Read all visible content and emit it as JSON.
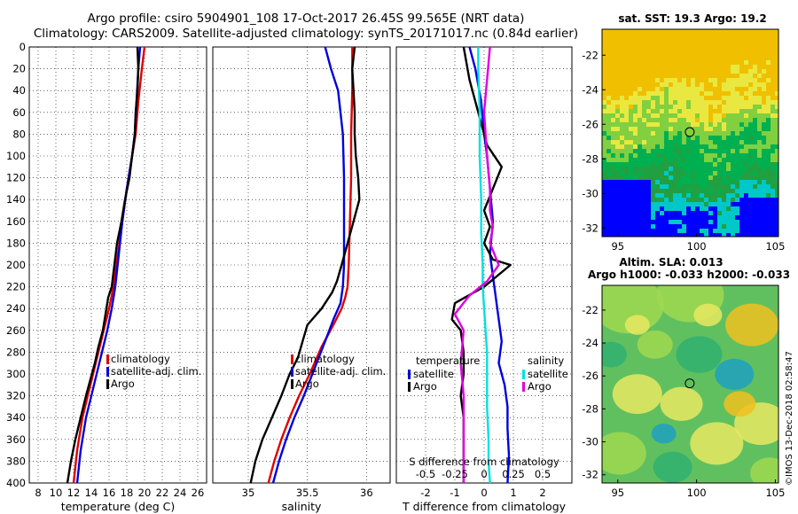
{
  "title": {
    "line1": "Argo profile: csiro 5904901_108 17-Oct-2017 26.45S 99.565E (NRT data)",
    "line2": "Climatology: CARS2009. Satellite-adjusted climatology: synTS_20171017.nc (0.84d earlier)"
  },
  "watermark": "©IMOS 13-Dec-2018 02:58:47",
  "colors": {
    "climatology": "#e00000",
    "satellite": "#0000dd",
    "argo": "#000000",
    "sat_salinity": "#00e0e0",
    "argo_salinity": "#e000e0"
  },
  "chart_data": [
    {
      "id": "temperature",
      "type": "line",
      "xlabel": "temperature (deg C)",
      "xlim": [
        7,
        27
      ],
      "ylim": [
        400,
        0
      ],
      "xticks": [
        8,
        10,
        12,
        14,
        16,
        18,
        20,
        22,
        24,
        26
      ],
      "yticks": [
        0,
        20,
        40,
        60,
        80,
        100,
        120,
        140,
        160,
        180,
        200,
        220,
        240,
        260,
        280,
        300,
        320,
        340,
        360,
        380,
        400
      ],
      "grid": true,
      "legend": {
        "position": "bottom-right",
        "labels": [
          "climatology",
          "satellite-adj. clim.",
          "Argo"
        ]
      },
      "series": [
        {
          "name": "climatology",
          "color": "#e00000",
          "x": [
            20.0,
            19.7,
            19.3,
            19.0,
            18.6,
            18.0,
            17.5,
            17.0,
            16.5,
            16.0,
            15.4,
            14.8,
            14.2,
            13.6,
            13.0,
            12.4,
            12.0
          ],
          "y": [
            0,
            20,
            50,
            80,
            100,
            130,
            160,
            190,
            220,
            240,
            260,
            280,
            300,
            320,
            340,
            370,
            400
          ]
        },
        {
          "name": "satellite-adj. clim.",
          "color": "#0000dd",
          "x": [
            19.5,
            19.3,
            19.1,
            18.9,
            18.6,
            18.0,
            17.5,
            17.1,
            16.7,
            16.3,
            15.8,
            15.2,
            14.6,
            14.0,
            13.4,
            12.8,
            12.4
          ],
          "y": [
            0,
            20,
            50,
            80,
            100,
            130,
            160,
            190,
            220,
            240,
            260,
            280,
            300,
            320,
            340,
            370,
            400
          ]
        },
        {
          "name": "Argo",
          "color": "#000000",
          "x": [
            19.2,
            19.3,
            19.2,
            19.0,
            18.9,
            18.6,
            18.3,
            17.8,
            17.4,
            16.9,
            16.6,
            16.3,
            15.9,
            15.6,
            15.3,
            14.8,
            14.4,
            13.9,
            13.4,
            12.8,
            12.2,
            11.7,
            11.3
          ],
          "y": [
            0,
            20,
            40,
            60,
            80,
            100,
            120,
            140,
            160,
            180,
            200,
            220,
            230,
            245,
            260,
            275,
            290,
            305,
            320,
            340,
            360,
            380,
            400
          ]
        }
      ]
    },
    {
      "id": "salinity",
      "type": "line",
      "xlabel": "salinity",
      "xlim": [
        34.7,
        36.2
      ],
      "ylim": [
        400,
        0
      ],
      "xticks": [
        35,
        35.5,
        36
      ],
      "xtick_labels": [
        "35",
        "35.5",
        "36"
      ],
      "grid": true,
      "legend": {
        "position": "bottom-right",
        "labels": [
          "climatology",
          "satellite-adj. clim.",
          "Argo"
        ]
      },
      "series": [
        {
          "name": "climatology",
          "color": "#e00000",
          "x": [
            35.88,
            35.88,
            35.87,
            35.87,
            35.86,
            35.85,
            35.84,
            35.82,
            35.79,
            35.72,
            35.62,
            35.52,
            35.43,
            35.35,
            35.28,
            35.22,
            35.17
          ],
          "y": [
            0,
            40,
            80,
            120,
            160,
            200,
            220,
            230,
            240,
            255,
            275,
            300,
            320,
            340,
            360,
            380,
            400
          ]
        },
        {
          "name": "satellite-adj. clim.",
          "color": "#0000dd",
          "x": [
            35.65,
            35.7,
            35.76,
            35.8,
            35.81,
            35.81,
            35.81,
            35.8,
            35.78,
            35.72,
            35.65,
            35.56,
            35.47,
            35.39,
            35.32,
            35.26,
            35.21
          ],
          "y": [
            0,
            20,
            40,
            80,
            120,
            160,
            200,
            220,
            235,
            250,
            270,
            295,
            320,
            340,
            360,
            380,
            400
          ]
        },
        {
          "name": "Argo",
          "color": "#000000",
          "x": [
            35.9,
            35.88,
            35.89,
            35.9,
            35.9,
            35.91,
            35.93,
            35.94,
            35.89,
            35.84,
            35.79,
            35.75,
            35.71,
            35.62,
            35.5,
            35.46,
            35.42,
            35.35,
            35.28,
            35.2,
            35.12,
            35.06,
            35.02
          ],
          "y": [
            0,
            20,
            40,
            60,
            80,
            100,
            120,
            140,
            160,
            180,
            200,
            215,
            225,
            240,
            255,
            270,
            285,
            300,
            320,
            340,
            360,
            380,
            400
          ]
        }
      ]
    },
    {
      "id": "difference",
      "type": "line",
      "xlabel": "T difference from climatology",
      "xlabel_top": "S difference from climatology",
      "xlim": [
        -3,
        3
      ],
      "ylim": [
        400,
        0
      ],
      "xticks": [
        -2,
        -1,
        0,
        1,
        2
      ],
      "xtick_labels": [
        "-2",
        "-1",
        "0",
        "1",
        "2"
      ],
      "top_tick_labels": [
        "-0.5",
        "-0.25",
        "0",
        "0.25",
        "0.5"
      ],
      "grid": true,
      "legend": {
        "temperature_title": "temperature",
        "salinity_title": "salinity",
        "labels": [
          "satellite",
          "Argo",
          "satellite",
          "Argo"
        ]
      },
      "series": [
        {
          "name": "temperature satellite",
          "color": "#0000dd",
          "x": [
            -0.5,
            -0.3,
            -0.1,
            0.0,
            0.1,
            0.2,
            0.3,
            0.2,
            0.3,
            0.4,
            0.5,
            0.6,
            0.5,
            0.7,
            0.8,
            0.8,
            0.85,
            0.8
          ],
          "y": [
            0,
            20,
            50,
            80,
            100,
            130,
            160,
            190,
            210,
            230,
            250,
            270,
            290,
            310,
            330,
            350,
            375,
            400
          ]
        },
        {
          "name": "temperature Argo",
          "color": "#000000",
          "x": [
            -0.7,
            -0.5,
            -0.2,
            0.1,
            0.6,
            0.3,
            0.0,
            0.2,
            0.0,
            0.3,
            0.9,
            0.0,
            -1.0,
            -1.1,
            -0.8,
            -0.7,
            -0.7,
            -0.8,
            -0.7,
            -0.7,
            -0.7,
            -0.7
          ],
          "y": [
            0,
            30,
            60,
            90,
            110,
            130,
            150,
            165,
            180,
            195,
            200,
            220,
            235,
            250,
            260,
            280,
            300,
            320,
            340,
            360,
            380,
            400
          ]
        },
        {
          "name": "salinity satellite",
          "color": "#00e0e0",
          "x": [
            -0.2,
            -0.2,
            -0.15,
            -0.15,
            -0.1,
            -0.1,
            -0.05,
            -0.05,
            0.0,
            0.05,
            0.1,
            0.1,
            0.1,
            0.15,
            0.15,
            0.2
          ],
          "y": [
            0,
            20,
            60,
            100,
            140,
            170,
            200,
            220,
            240,
            260,
            280,
            300,
            330,
            360,
            380,
            400
          ]
        },
        {
          "name": "salinity Argo",
          "color": "#e000e0",
          "x": [
            0.2,
            0.1,
            0.0,
            0.1,
            0.2,
            0.2,
            0.3,
            0.2,
            0.5,
            0.1,
            -0.5,
            -1.0,
            -0.7,
            -0.8,
            -0.7,
            -0.7,
            -0.7
          ],
          "y": [
            0,
            30,
            60,
            100,
            130,
            150,
            165,
            180,
            200,
            215,
            228,
            245,
            260,
            290,
            320,
            360,
            400
          ]
        }
      ]
    },
    {
      "id": "sst_map",
      "type": "heatmap",
      "title": "sat. SST: 19.3 Argo: 19.2",
      "xlim": [
        94,
        105.2
      ],
      "ylim": [
        -32.5,
        -20.5
      ],
      "xticks": [
        95,
        100,
        105
      ],
      "yticks": [
        -22,
        -24,
        -26,
        -28,
        -30,
        -32
      ],
      "marker": {
        "lon": 99.565,
        "lat": -26.45
      },
      "colormap": [
        "#0000ff",
        "#00c8c8",
        "#20a040",
        "#00b050",
        "#80d040",
        "#e8e840",
        "#f0c000"
      ]
    },
    {
      "id": "sla_map",
      "type": "heatmap",
      "title": "Altim. SLA: 0.013",
      "subtitle": "Argo h1000: -0.033 h2000: -0.033",
      "xlim": [
        94,
        105.2
      ],
      "ylim": [
        -32.5,
        -20.5
      ],
      "xticks": [
        95,
        100,
        105
      ],
      "yticks": [
        -22,
        -24,
        -26,
        -28,
        -30,
        -32
      ],
      "marker": {
        "lon": 99.565,
        "lat": -26.45
      },
      "colormap": [
        "#20a0c0",
        "#30b070",
        "#60c060",
        "#a0d850",
        "#e8e860",
        "#f0c020"
      ]
    }
  ]
}
